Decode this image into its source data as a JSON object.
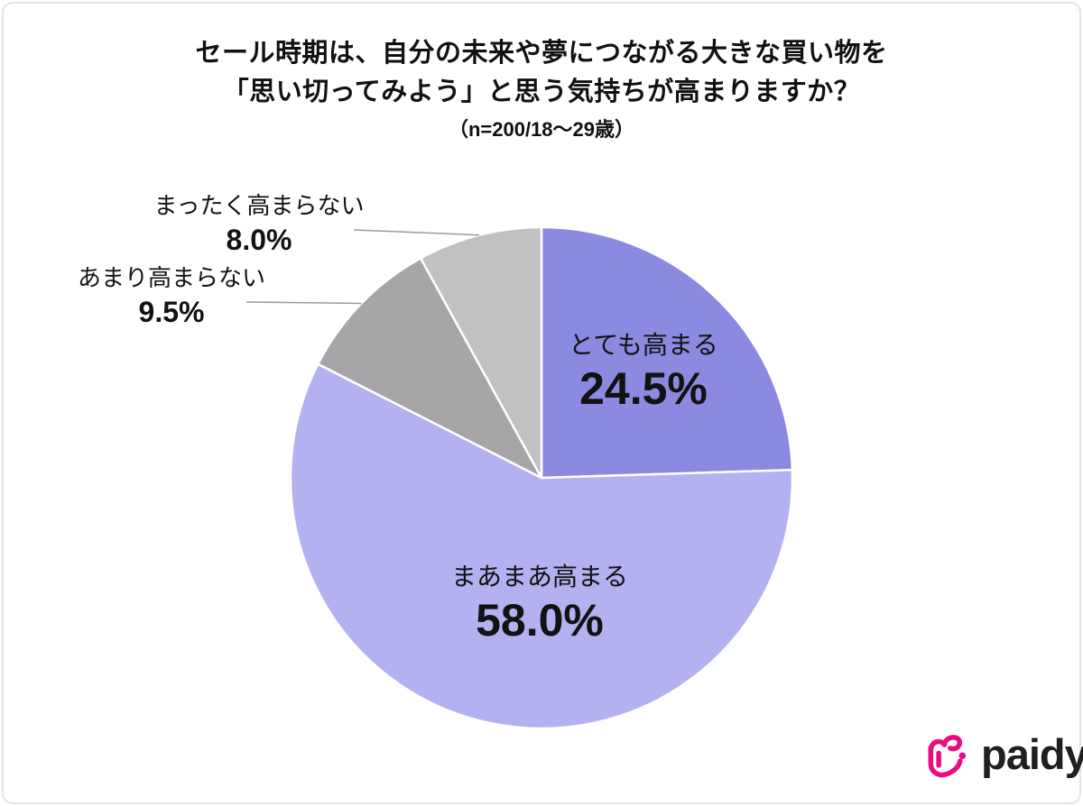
{
  "header": {
    "title_line1": "セール時期は、自分の未来や夢につながる大きな買い物を",
    "title_line2": "「思い切ってみよう」と思う気持ちが高まりますか？",
    "subtitle": "（n=200/18～29歳）"
  },
  "chart_data": {
    "type": "pie",
    "title": "セール時期は、自分の未来や夢につながる大きな買い物を「思い切ってみよう」と思う気持ちが高まりますか？",
    "subtitle": "（n=200/18～29歳）",
    "sample_note": "n=200/18～29歳",
    "start_angle_deg": 0,
    "direction": "clockwise",
    "legend_position": "none",
    "separator_color": "#ffffff",
    "leader_line_color": "#9b9b9b",
    "segments": [
      {
        "label": "とても高まる",
        "value": 24.5,
        "display": "24.5%",
        "color": "#8b89e0",
        "label_placement": "inside"
      },
      {
        "label": "まあまあ高まる",
        "value": 58.0,
        "display": "58.0%",
        "color": "#b3b1f0",
        "label_placement": "inside"
      },
      {
        "label": "あまり高まらない",
        "value": 9.5,
        "display": "9.5%",
        "color": "#a7a5a7",
        "label_placement": "outside"
      },
      {
        "label": "まったく高まらない",
        "value": 8.0,
        "display": "8.0%",
        "color": "#c2c0c2",
        "label_placement": "outside"
      }
    ]
  },
  "branding": {
    "logo_text": "paidy",
    "logo_mark": "paidy-heart-mark",
    "logo_color": "#ec0c7f",
    "logo_text_color": "#1f1f1f"
  }
}
